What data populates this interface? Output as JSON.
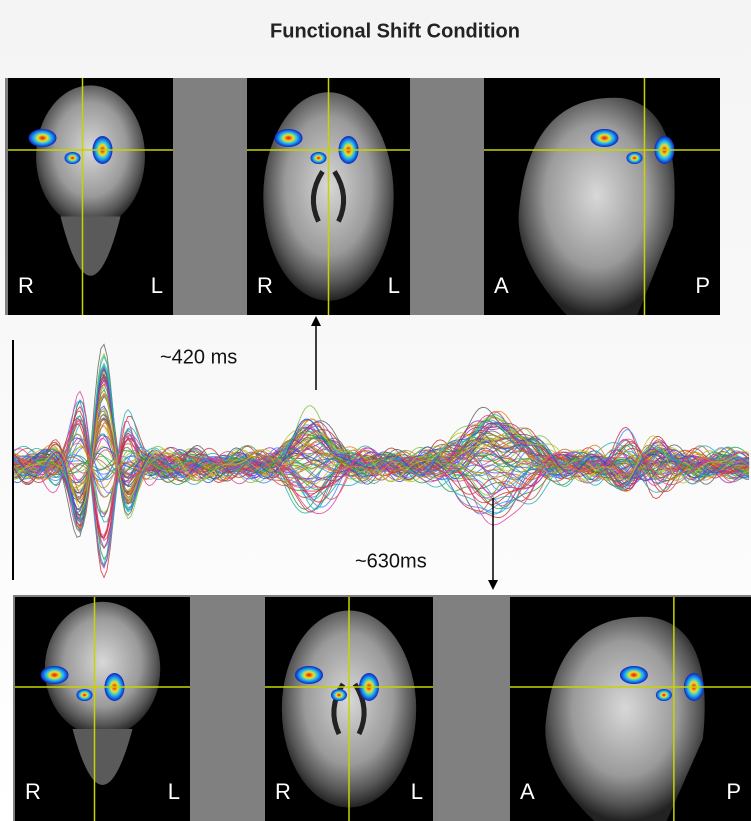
{
  "title": "Functional Shift Condition",
  "top_row": {
    "panels": [
      {
        "left": "R",
        "right": "L"
      },
      {
        "left": "R",
        "right": "L"
      },
      {
        "left": "A",
        "right": "P"
      }
    ]
  },
  "annotations": {
    "upper": "~420 ms",
    "lower": "~630ms"
  },
  "bottom_row": {
    "panels": [
      {
        "left": "R",
        "right": "L"
      },
      {
        "left": "R",
        "right": "L"
      },
      {
        "left": "A",
        "right": "P"
      }
    ]
  }
}
